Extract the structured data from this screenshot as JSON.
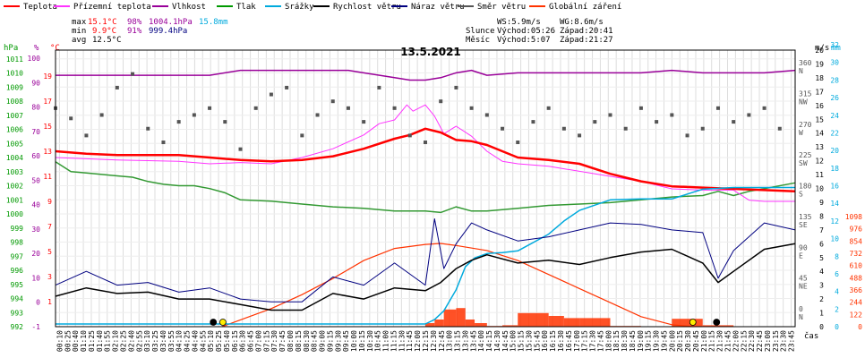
{
  "chart_data": {
    "type": "line",
    "title": "13.5.2021",
    "xlabel": "čas",
    "legend_placement": "top",
    "grid": true,
    "legend": [
      {
        "name": "Teplota",
        "color": "#ff0000"
      },
      {
        "name": "Přízemní teplota",
        "color": "#ff33ff"
      },
      {
        "name": "Vlhkost",
        "color": "#990099"
      },
      {
        "name": "Tlak",
        "color": "#009900"
      },
      {
        "name": "Srážky",
        "color": "#00aadd"
      },
      {
        "name": "Rychlost větru",
        "color": "#000000"
      },
      {
        "name": "Náraz větru",
        "color": "#000080"
      },
      {
        "name": "Směr větru",
        "color": "#555555"
      },
      {
        "name": "Globální záření",
        "color": "#ff3300"
      }
    ],
    "stats": {
      "max": {
        "label": "max",
        "temp": "15.1°C",
        "hum": "98%",
        "press": "1004.1hPa",
        "rain": "15.8mm"
      },
      "min": {
        "label": "min",
        "temp": "9.9°C",
        "hum": "91%",
        "press": "999.4hPa"
      },
      "avg": {
        "label": "avg",
        "temp": "12.5°C"
      }
    },
    "wind_info": {
      "ws": "WS:5.9m/s",
      "wg": "WG:8.6m/s"
    },
    "sun_info": {
      "sun": "Slunce",
      "moon": "Měsíc",
      "sunrise": "Východ:05:26",
      "sunset": "Západ:20:41",
      "moonrise": "Východ:5:07",
      "moonset": "Západ:21:27"
    },
    "axes": {
      "hpa": {
        "unit": "hPa",
        "range": [
          992,
          1012
        ],
        "ticks": [
          "992",
          "993",
          "994",
          "995",
          "996",
          "997",
          "998",
          "999",
          "1000",
          "1001",
          "1002",
          "1003",
          "1004",
          "1005",
          "1006",
          "1007",
          "1008",
          "1009",
          "1010",
          "1011"
        ]
      },
      "pct": {
        "unit": "%",
        "range": [
          -10,
          100
        ],
        "ticks": [
          "-1",
          "0",
          "10",
          "20",
          "30",
          "40",
          "50",
          "60",
          "70",
          "80",
          "90",
          "100"
        ]
      },
      "degc": {
        "unit": "°C",
        "range": [
          -1,
          20
        ],
        "ticks": [
          "1",
          "3",
          "5",
          "7",
          "9",
          "11",
          "13",
          "15",
          "17",
          "19"
        ]
      },
      "ms": {
        "unit": "m/s",
        "range": [
          0,
          20
        ],
        "ticks": [
          "0",
          "1",
          "2",
          "3",
          "4",
          "5",
          "6",
          "7",
          "8",
          "9",
          "10",
          "11",
          "12",
          "13",
          "14",
          "15",
          "16",
          "17",
          "18",
          "19",
          "20"
        ]
      },
      "mm": {
        "unit": "mm",
        "range": [
          0,
          32
        ],
        "ticks": [
          "0",
          "2",
          "4",
          "6",
          "8",
          "10",
          "12",
          "14",
          "16",
          "18",
          "20",
          "22",
          "24",
          "26",
          "28",
          "30",
          "32"
        ]
      },
      "deg": {
        "range": [
          0,
          360
        ],
        "ticks": [
          "0",
          "45",
          "90",
          "135",
          "180",
          "225",
          "270",
          "315",
          "360"
        ],
        "dirs": [
          "N",
          "NE",
          "E",
          "SE",
          "S",
          "SW",
          "W",
          "NW",
          "N"
        ]
      },
      "rad": {
        "range": [
          0,
          1098
        ],
        "ticks": [
          "0",
          "122",
          "244",
          "366",
          "488",
          "610",
          "732",
          "854",
          "976",
          "1098"
        ]
      },
      "time": [
        "00:10",
        "00:25",
        "00:40",
        "01:10",
        "01:25",
        "01:40",
        "01:55",
        "02:10",
        "02:25",
        "02:40",
        "02:55",
        "03:10",
        "03:25",
        "03:40",
        "03:55",
        "04:10",
        "04:25",
        "04:40",
        "04:55",
        "05:10",
        "05:25",
        "05:40",
        "06:15",
        "06:30",
        "06:45",
        "07:00",
        "07:15",
        "07:30",
        "07:45",
        "08:00",
        "08:15",
        "08:30",
        "08:45",
        "09:00",
        "09:15",
        "09:30",
        "09:45",
        "10:00",
        "10:15",
        "10:30",
        "10:45",
        "11:00",
        "11:15",
        "11:30",
        "11:45",
        "12:00",
        "12:15",
        "12:30",
        "12:45",
        "13:00",
        "13:15",
        "13:30",
        "13:45",
        "14:00",
        "14:15",
        "14:30",
        "14:45",
        "15:00",
        "15:15",
        "15:30",
        "15:45",
        "16:00",
        "16:15",
        "16:30",
        "16:45",
        "17:00",
        "17:15",
        "17:30",
        "17:45",
        "18:00",
        "18:15",
        "18:30",
        "18:45",
        "19:00",
        "19:15",
        "19:30",
        "19:45",
        "20:00",
        "20:15",
        "20:30",
        "20:45",
        "21:00",
        "21:15",
        "21:30",
        "21:45",
        "22:00",
        "22:15",
        "22:30",
        "22:45",
        "23:00",
        "23:15",
        "23:30",
        "23:45"
      ]
    },
    "series": [
      {
        "name": "Teplota",
        "unit": "°C",
        "x_hours": [
          0,
          1,
          2,
          3,
          4,
          5,
          6,
          7,
          8,
          9,
          10,
          11,
          11.5,
          12,
          12.5,
          13,
          13.5,
          14,
          14.5,
          15,
          16,
          17,
          18,
          19,
          20,
          21,
          22,
          23,
          24
        ],
        "values": [
          13.0,
          12.8,
          12.7,
          12.7,
          12.7,
          12.5,
          12.3,
          12.2,
          12.3,
          12.6,
          13.2,
          14.0,
          14.3,
          14.8,
          14.5,
          13.9,
          13.8,
          13.5,
          13.0,
          12.5,
          12.3,
          12.0,
          11.2,
          10.6,
          10.2,
          10.1,
          10.0,
          9.9,
          9.8
        ]
      },
      {
        "name": "Přízemní teplota",
        "unit": "°C",
        "x_hours": [
          0,
          2,
          4,
          5,
          6,
          7,
          8,
          9,
          10,
          10.5,
          11,
          11.4,
          11.6,
          12,
          12.3,
          12.6,
          13,
          13.5,
          14,
          14.5,
          15,
          16,
          18,
          19,
          20,
          21,
          22,
          22.5,
          23,
          24
        ],
        "values": [
          12.5,
          12.3,
          12.2,
          12.0,
          12.1,
          12.0,
          12.5,
          13.2,
          14.3,
          15.2,
          15.5,
          16.7,
          16.2,
          16.7,
          15.8,
          14.4,
          15.0,
          14.2,
          13.0,
          12.2,
          12.0,
          11.8,
          11.0,
          10.6,
          10.0,
          9.9,
          9.9,
          9.1,
          9.0,
          9.0
        ]
      },
      {
        "name": "Vlhkost",
        "unit": "%",
        "x_hours": [
          0,
          2,
          3,
          4,
          5,
          6,
          7,
          8,
          9,
          9.5,
          10,
          11,
          11.5,
          12,
          12.5,
          13,
          13.5,
          14,
          15,
          16,
          17,
          18,
          19,
          20,
          21,
          22,
          23,
          24
        ],
        "values": [
          93,
          93,
          93,
          93,
          93,
          95,
          95,
          95,
          95,
          95,
          94,
          92,
          91,
          91,
          92,
          94,
          95,
          93,
          94,
          94,
          94,
          94,
          94,
          95,
          94,
          94,
          94,
          95
        ]
      },
      {
        "name": "Tlak",
        "unit": "hPa",
        "x_hours": [
          0,
          0.5,
          1,
          1.5,
          2,
          2.5,
          3,
          3.5,
          4,
          4.5,
          5,
          5.5,
          6,
          7,
          8,
          9,
          10,
          11,
          12,
          12.5,
          13,
          13.5,
          14,
          15,
          16,
          17,
          18,
          19,
          20,
          21,
          21.5,
          22,
          22.5,
          23,
          24
        ],
        "values": [
          1003.7,
          1003.0,
          1002.9,
          1002.8,
          1002.7,
          1002.6,
          1002.3,
          1002.1,
          1002.0,
          1002.0,
          1001.8,
          1001.5,
          1001.0,
          1000.9,
          1000.7,
          1000.5,
          1000.4,
          1000.2,
          1000.2,
          1000.1,
          1000.5,
          1000.2,
          1000.2,
          1000.4,
          1000.6,
          1000.7,
          1000.8,
          1001.0,
          1001.2,
          1001.3,
          1001.6,
          1001.3,
          1001.6,
          1001.8,
          1002.2
        ]
      },
      {
        "name": "Srážky",
        "unit": "mm",
        "x_hours": [
          0,
          2,
          4,
          5,
          6,
          7,
          8,
          9,
          10,
          11,
          12,
          12.3,
          12.6,
          13,
          13.3,
          13.6,
          14,
          14.5,
          15,
          16,
          16.5,
          17,
          18,
          19,
          20,
          21,
          22,
          23,
          24
        ],
        "values": [
          0.3,
          0.3,
          0.3,
          0.3,
          0.3,
          0.3,
          0.3,
          0.3,
          0.3,
          0.3,
          0.3,
          0.8,
          1.8,
          4.2,
          6.8,
          7.8,
          8.3,
          8.4,
          8.6,
          10.5,
          12.0,
          13.2,
          14.4,
          14.5,
          14.5,
          15.6,
          15.8,
          15.8,
          15.8
        ]
      },
      {
        "name": "Rychlost větru",
        "unit": "m/s",
        "x_hours": [
          0,
          1,
          2,
          3,
          4,
          5,
          6,
          7,
          8,
          9,
          10,
          11,
          12,
          12.5,
          13,
          13.5,
          14,
          15,
          16,
          17,
          18,
          19,
          20,
          21,
          21.5,
          22,
          23,
          24
        ],
        "values": [
          2.2,
          2.8,
          2.4,
          2.5,
          2.0,
          2.0,
          1.6,
          1.2,
          1.2,
          2.4,
          2.0,
          2.8,
          2.6,
          3.2,
          4.2,
          4.8,
          5.2,
          4.6,
          4.8,
          4.5,
          5.0,
          5.4,
          5.6,
          4.6,
          3.2,
          4.0,
          5.6,
          6.0
        ]
      },
      {
        "name": "Náraz větru",
        "unit": "m/s",
        "x_hours": [
          0,
          1,
          2,
          3,
          4,
          5,
          6,
          7,
          8,
          9,
          10,
          11,
          12,
          12.3,
          12.6,
          13,
          13.5,
          14,
          15,
          16,
          17,
          18,
          19,
          20,
          21,
          21.5,
          22,
          23,
          24
        ],
        "values": [
          3.0,
          4.0,
          3.0,
          3.2,
          2.5,
          2.8,
          2.0,
          1.8,
          1.8,
          3.6,
          3.0,
          4.6,
          3.0,
          7.8,
          4.2,
          6.0,
          7.5,
          7.0,
          6.2,
          6.5,
          7.0,
          7.5,
          7.4,
          7.0,
          6.8,
          3.5,
          5.5,
          7.5,
          7.0
        ]
      },
      {
        "name": "Globální záření",
        "unit": "W/m²",
        "x_hours": [
          5.4,
          7,
          8,
          9,
          10,
          11,
          12,
          12.5,
          13,
          14,
          15,
          16,
          17,
          18,
          19,
          20,
          20.7
        ],
        "values": [
          0,
          180,
          320,
          480,
          660,
          780,
          820,
          830,
          810,
          760,
          660,
          520,
          380,
          240,
          100,
          20,
          0
        ]
      }
    ],
    "wind_direction": {
      "name": "Směr větru",
      "unit": "°",
      "x_hours": [
        0,
        0.5,
        1,
        1.5,
        2,
        2.5,
        3,
        3.5,
        4,
        4.5,
        5,
        5.5,
        6,
        6.5,
        7,
        7.5,
        8,
        8.5,
        9,
        9.5,
        10,
        10.5,
        11,
        11.5,
        12,
        12.5,
        13,
        13.5,
        14,
        14.5,
        15,
        15.5,
        16,
        16.5,
        17,
        17.5,
        18,
        18.5,
        19,
        19.5,
        20,
        20.5,
        21,
        21.5,
        22,
        22.5,
        23,
        23.5
      ],
      "values": [
        300,
        285,
        260,
        290,
        330,
        350,
        270,
        250,
        280,
        290,
        300,
        280,
        240,
        300,
        320,
        330,
        260,
        290,
        310,
        300,
        280,
        330,
        300,
        260,
        250,
        310,
        330,
        300,
        290,
        270,
        250,
        280,
        300,
        270,
        260,
        280,
        290,
        270,
        300,
        280,
        290,
        260,
        270,
        300,
        280,
        290,
        300,
        270
      ]
    },
    "markers": {
      "sun": [
        5.43,
        20.68
      ],
      "moon": [
        5.12,
        21.45
      ]
    }
  }
}
